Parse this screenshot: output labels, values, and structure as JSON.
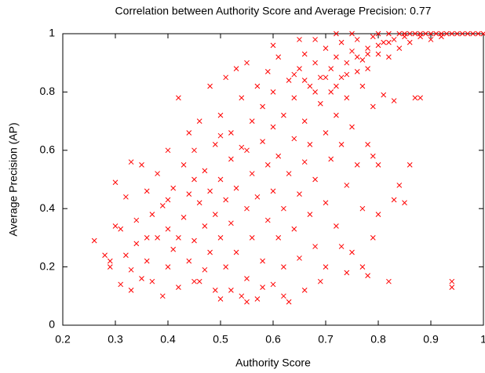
{
  "chart_data": {
    "type": "scatter",
    "title": "Correlation between Authority Score and Average Precision: 0.77",
    "x_label": "Authority Score",
    "y_label": "Average Precision (AP)",
    "color": "#ff0000",
    "marker": "x",
    "grid": false,
    "xlim": [
      0.2,
      1
    ],
    "ylim": [
      0,
      1
    ],
    "xticks": [
      0.2,
      0.3,
      0.4,
      0.5,
      0.6,
      0.7,
      0.8,
      0.9,
      1
    ],
    "yticks": [
      0,
      0.2,
      0.4,
      0.6,
      0.8,
      1
    ],
    "x": [
      0.26,
      0.29,
      0.29,
      0.3,
      0.3,
      0.31,
      0.31,
      0.32,
      0.32,
      0.33,
      0.33,
      0.34,
      0.35,
      0.35,
      0.36,
      0.36,
      0.37,
      0.37,
      0.38,
      0.38,
      0.39,
      0.39,
      0.4,
      0.4,
      0.4,
      0.41,
      0.41,
      0.42,
      0.42,
      0.43,
      0.43,
      0.44,
      0.44,
      0.44,
      0.45,
      0.45,
      0.45,
      0.46,
      0.46,
      0.47,
      0.47,
      0.47,
      0.48,
      0.48,
      0.48,
      0.49,
      0.49,
      0.49,
      0.5,
      0.5,
      0.5,
      0.5,
      0.51,
      0.51,
      0.51,
      0.52,
      0.52,
      0.52,
      0.53,
      0.53,
      0.53,
      0.54,
      0.54,
      0.54,
      0.55,
      0.55,
      0.55,
      0.56,
      0.56,
      0.56,
      0.57,
      0.57,
      0.57,
      0.58,
      0.58,
      0.58,
      0.59,
      0.59,
      0.59,
      0.6,
      0.6,
      0.6,
      0.6,
      0.61,
      0.61,
      0.61,
      0.62,
      0.62,
      0.62,
      0.63,
      0.63,
      0.63,
      0.64,
      0.64,
      0.64,
      0.65,
      0.65,
      0.65,
      0.66,
      0.66,
      0.66,
      0.67,
      0.67,
      0.67,
      0.68,
      0.68,
      0.68,
      0.69,
      0.69,
      0.69,
      0.7,
      0.7,
      0.7,
      0.71,
      0.71,
      0.71,
      0.72,
      0.72,
      0.72,
      0.73,
      0.73,
      0.73,
      0.74,
      0.74,
      0.74,
      0.75,
      0.75,
      0.75,
      0.76,
      0.76,
      0.76,
      0.77,
      0.77,
      0.77,
      0.78,
      0.78,
      0.78,
      0.79,
      0.79,
      0.79,
      0.8,
      0.8,
      0.8,
      0.81,
      0.81,
      0.82,
      0.82,
      0.82,
      0.83,
      0.83,
      0.84,
      0.84,
      0.85,
      0.85,
      0.86,
      0.86,
      0.87,
      0.87,
      0.88,
      0.88,
      0.89,
      0.9,
      0.9,
      0.91,
      0.92,
      0.92,
      0.93,
      0.94,
      0.94,
      0.94,
      0.95,
      0.96,
      0.97,
      0.98,
      0.99,
      1,
      0.28,
      0.34,
      0.42,
      0.46,
      0.52,
      0.55,
      0.58,
      0.62,
      0.66,
      0.7,
      0.74,
      0.78,
      0.8,
      0.83,
      0.85,
      0.86,
      0.84,
      0.88,
      0.65,
      0.6,
      0.72,
      0.75,
      0.68,
      0.79,
      0.77,
      0.73,
      0.55,
      0.5,
      0.45,
      0.4,
      0.36,
      0.33,
      0.7,
      0.72,
      0.74,
      0.76,
      0.68,
      0.66,
      0.64,
      0.78,
      0.8,
      0.82
    ],
    "values": [
      0.29,
      0.22,
      0.2,
      0.49,
      0.34,
      0.33,
      0.14,
      0.24,
      0.44,
      0.12,
      0.56,
      0.28,
      0.16,
      0.55,
      0.46,
      0.22,
      0.38,
      0.15,
      0.52,
      0.3,
      0.1,
      0.41,
      0.6,
      0.2,
      0.33,
      0.47,
      0.26,
      0.78,
      0.13,
      0.55,
      0.37,
      0.66,
      0.22,
      0.45,
      0.29,
      0.6,
      0.15,
      0.42,
      0.7,
      0.34,
      0.53,
      0.19,
      0.82,
      0.25,
      0.46,
      0.62,
      0.38,
      0.12,
      0.72,
      0.3,
      0.5,
      0.09,
      0.85,
      0.43,
      0.2,
      0.66,
      0.35,
      0.57,
      0.88,
      0.25,
      0.47,
      0.1,
      0.61,
      0.78,
      0.4,
      0.9,
      0.16,
      0.52,
      0.7,
      0.3,
      0.82,
      0.44,
      0.09,
      0.63,
      0.22,
      0.75,
      0.36,
      0.55,
      0.87,
      0.46,
      0.68,
      0.14,
      0.8,
      0.3,
      0.58,
      0.92,
      0.4,
      0.72,
      0.2,
      0.84,
      0.52,
      0.08,
      0.64,
      0.33,
      0.78,
      0.88,
      0.45,
      0.23,
      0.7,
      0.56,
      0.93,
      0.82,
      0.38,
      0.62,
      0.9,
      0.5,
      0.27,
      0.76,
      0.85,
      0.15,
      0.95,
      0.66,
      0.42,
      0.88,
      0.57,
      0.8,
      0.92,
      0.34,
      0.72,
      0.85,
      0.62,
      0.97,
      0.9,
      0.48,
      0.78,
      0.94,
      0.25,
      0.68,
      0.87,
      0.55,
      0.98,
      0.91,
      0.82,
      0.4,
      0.95,
      0.62,
      0.88,
      0.99,
      0.75,
      0.3,
      0.93,
      0.55,
      1,
      0.97,
      0.79,
      1,
      0.15,
      0.92,
      0.98,
      0.77,
      1,
      0.95,
      1,
      0.99,
      1,
      0.97,
      1,
      0.78,
      1,
      0.99,
      1,
      1,
      0.98,
      1,
      1,
      0.99,
      1,
      0.15,
      0.13,
      1,
      1,
      1,
      1,
      1,
      1,
      1,
      0.24,
      0.36,
      0.3,
      0.15,
      0.12,
      0.08,
      0.13,
      0.1,
      0.12,
      0.2,
      0.18,
      0.17,
      0.38,
      0.43,
      0.42,
      0.55,
      0.48,
      0.78,
      0.98,
      0.96,
      1,
      1,
      0.98,
      0.58,
      0.2,
      0.27,
      0.6,
      0.65,
      0.5,
      0.43,
      0.3,
      0.19,
      0.85,
      0.82,
      0.86,
      0.92,
      0.8,
      0.84,
      0.86,
      0.93,
      0.96,
      0.97
    ]
  }
}
